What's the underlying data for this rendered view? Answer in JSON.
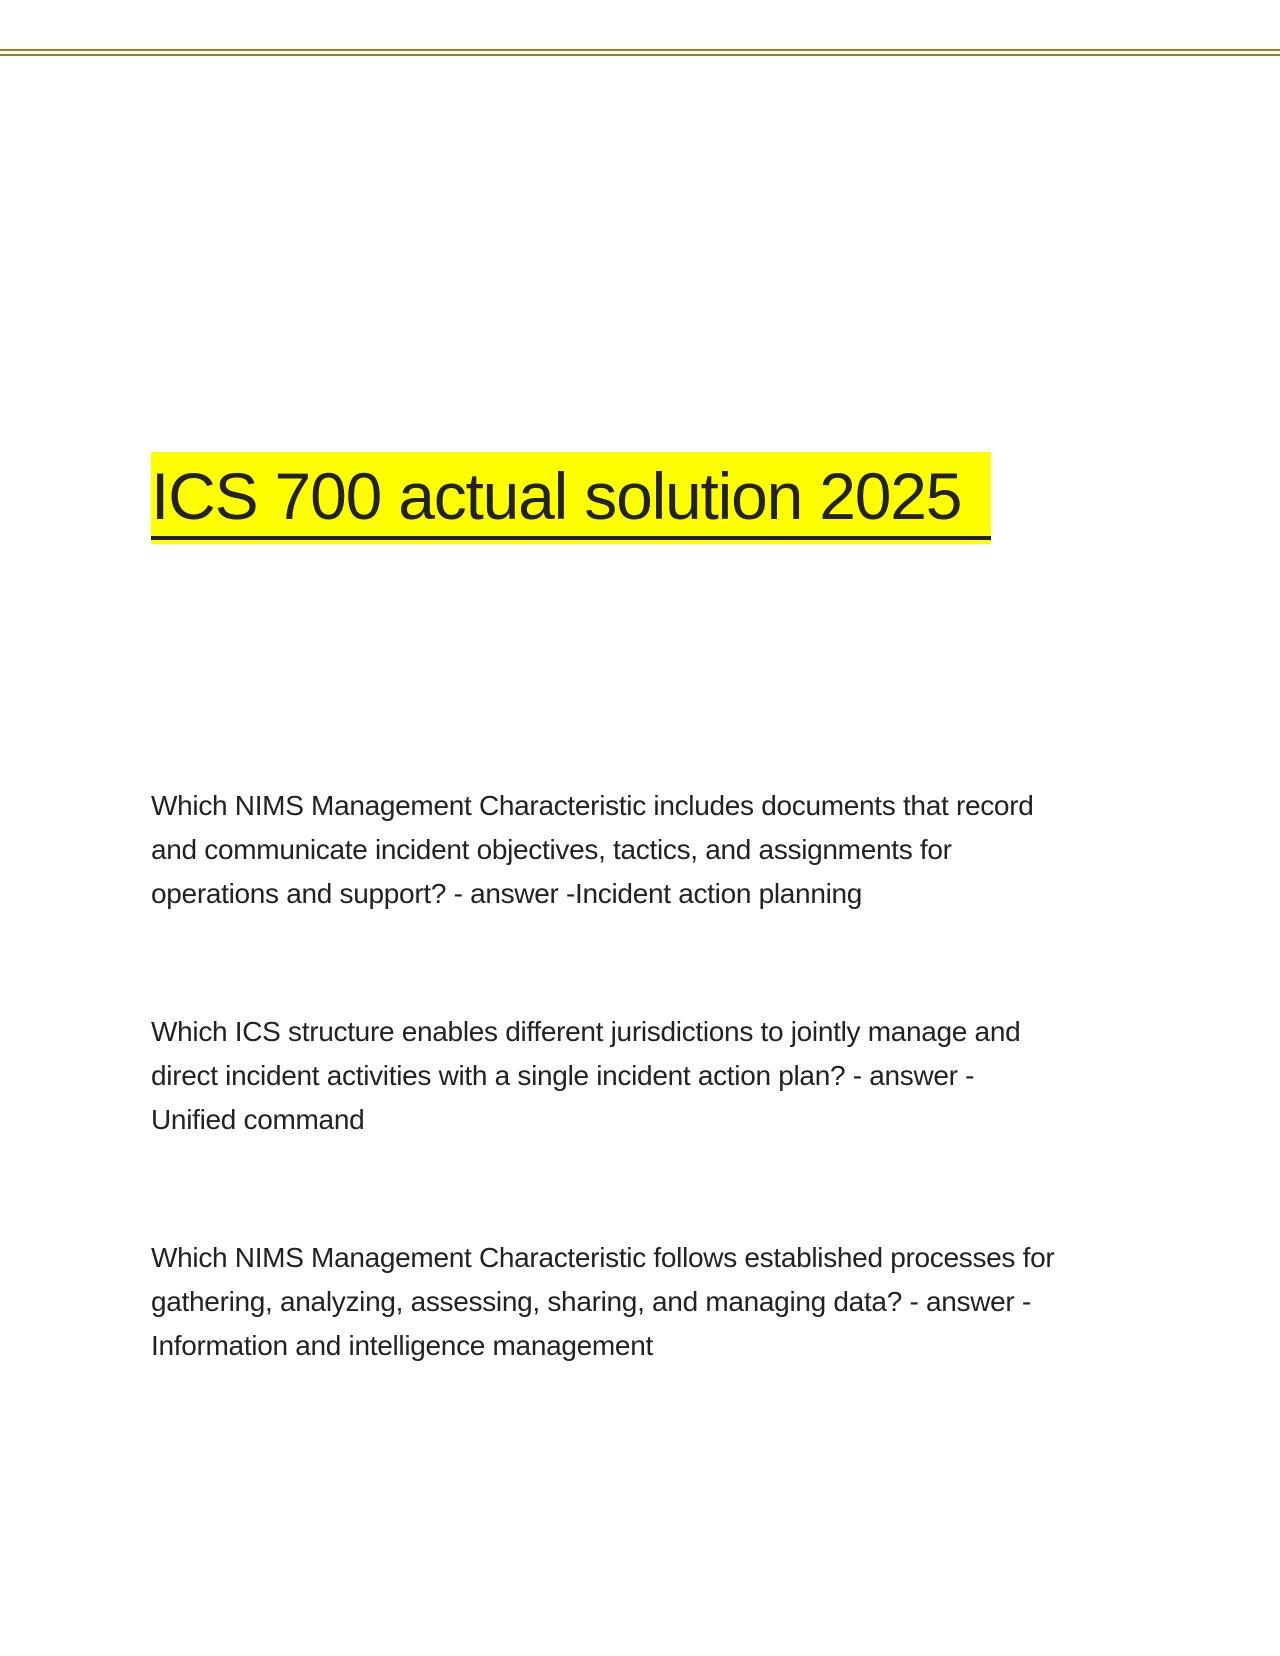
{
  "document": {
    "title": "ICS 700 actual solution 2025",
    "highlight_color": "#ffff00",
    "rule_color": "#9c7d1e",
    "questions": [
      {
        "lines": [
          "Which NIMS Management Characteristic includes documents that record",
          "and communicate incident objectives, tactics, and assignments for",
          "operations and support? - answer -Incident action planning"
        ]
      },
      {
        "lines": [
          "Which ICS structure enables different jurisdictions to jointly manage and",
          "direct incident activities with a single incident action plan? - answer -",
          "Unified command"
        ]
      },
      {
        "lines": [
          "Which NIMS Management Characteristic follows established processes for",
          "gathering, analyzing, assessing, sharing, and managing data? - answer -",
          "Information and intelligence management"
        ]
      }
    ]
  }
}
